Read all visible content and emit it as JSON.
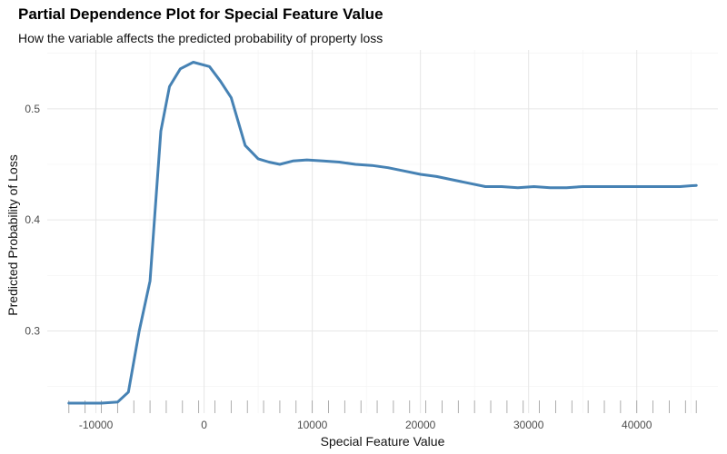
{
  "chart_data": {
    "type": "line",
    "title": "Partial Dependence Plot for Special Feature Value",
    "subtitle": "How the variable affects the predicted probability of property loss",
    "xlabel": "Special Feature Value",
    "ylabel": "Predicted Probability of Loss",
    "xlim": [
      -14500,
      47500
    ],
    "ylim": [
      0.226,
      0.553
    ],
    "x_ticks": [
      -10000,
      0,
      10000,
      20000,
      30000,
      40000
    ],
    "x_tick_labels": [
      "-10000",
      "0",
      "10000",
      "20000",
      "30000",
      "40000"
    ],
    "y_ticks": [
      0.3,
      0.4,
      0.5
    ],
    "y_tick_labels": [
      "0.3",
      "0.4",
      "0.5"
    ],
    "grid": true,
    "rug": true,
    "line_color": "#4682B4",
    "series": [
      {
        "x": [
          -12500,
          -11000,
          -9500,
          -8000,
          -7000,
          -6000,
          -5000,
          -4000,
          -3200,
          -2200,
          -1000,
          500,
          1500,
          2500,
          3800,
          5000,
          6000,
          7000,
          8200,
          9500,
          11000,
          12500,
          14000,
          15500,
          17000,
          18500,
          20000,
          21500,
          23000,
          24500,
          26000,
          27500,
          29000,
          30500,
          32000,
          33500,
          35000,
          36500,
          38000,
          39500,
          41000,
          42500,
          44000,
          45500
        ],
        "y": [
          0.235,
          0.235,
          0.235,
          0.236,
          0.245,
          0.3,
          0.345,
          0.48,
          0.52,
          0.536,
          0.542,
          0.538,
          0.525,
          0.51,
          0.467,
          0.455,
          0.452,
          0.45,
          0.453,
          0.454,
          0.453,
          0.452,
          0.45,
          0.449,
          0.447,
          0.444,
          0.441,
          0.439,
          0.436,
          0.433,
          0.43,
          0.43,
          0.429,
          0.43,
          0.429,
          0.429,
          0.43,
          0.43,
          0.43,
          0.43,
          0.43,
          0.43,
          0.43,
          0.431
        ]
      }
    ],
    "rug_x": [
      -12500,
      -11000,
      -9500,
      -8000,
      -6500,
      -5000,
      -3500,
      -2000,
      -500,
      1000,
      2500,
      4000,
      5500,
      7000,
      8500,
      10000,
      11500,
      13000,
      14500,
      16000,
      17500,
      19000,
      20500,
      22000,
      23500,
      25000,
      26500,
      28000,
      29500,
      31000,
      32500,
      34000,
      35500,
      37000,
      38500,
      40000,
      41500,
      43000,
      44500,
      45500
    ]
  }
}
